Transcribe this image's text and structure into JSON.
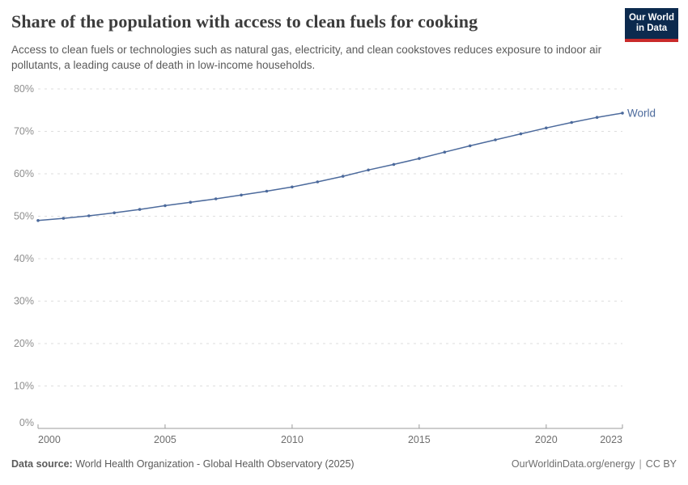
{
  "header": {
    "title": "Share of the population with access to clean fuels for cooking",
    "subtitle": "Access to clean fuels or technologies such as natural gas, electricity, and clean cookstoves reduces exposure to indoor air pollutants, a leading cause of death in low-income households.",
    "logo": {
      "line1": "Our World",
      "line2": "in Data"
    }
  },
  "chart_data": {
    "type": "line",
    "title": "Share of the population with access to clean fuels for cooking",
    "x": [
      2000,
      2001,
      2002,
      2003,
      2004,
      2005,
      2006,
      2007,
      2008,
      2009,
      2010,
      2011,
      2012,
      2013,
      2014,
      2015,
      2016,
      2017,
      2018,
      2019,
      2020,
      2021,
      2022,
      2023
    ],
    "series": [
      {
        "name": "World",
        "color": "#4c6a9c",
        "values": [
          49.0,
          49.5,
          50.1,
          50.8,
          51.6,
          52.5,
          53.3,
          54.1,
          55.0,
          55.9,
          56.9,
          58.1,
          59.4,
          60.9,
          62.2,
          63.6,
          65.1,
          66.6,
          68.0,
          69.4,
          70.8,
          72.1,
          73.3,
          74.3
        ]
      }
    ],
    "ylim": [
      0,
      80
    ],
    "y_ticks": [
      0,
      10,
      20,
      30,
      40,
      50,
      60,
      70,
      80
    ],
    "y_tick_suffix": "%",
    "x_ticks": [
      2000,
      2005,
      2010,
      2015,
      2020,
      2023
    ],
    "grid": "horizontal-dashed",
    "legend": "line-end-label",
    "xlabel": "",
    "ylabel": ""
  },
  "footer": {
    "source_label": "Data source:",
    "source_text": "World Health Organization - Global Health Observatory (2025)",
    "site": "OurWorldinData.org/energy",
    "separator": "|",
    "license": "CC BY"
  },
  "colors": {
    "line": "#4c6a9c",
    "brand_navy": "#0c2a4e",
    "brand_red": "#c92a2a",
    "gridline": "#dedede",
    "axis": "#9b9b9b"
  }
}
